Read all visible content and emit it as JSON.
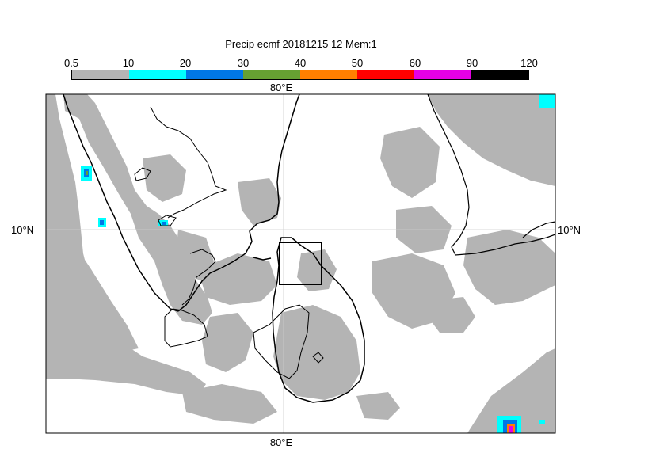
{
  "title": "Precip ecmf 20181215 12 Mem:1",
  "legend": {
    "labels": [
      "0.5",
      "10",
      "20",
      "30",
      "40",
      "50",
      "60",
      "90",
      "120"
    ],
    "colors": [
      "#b4b4b4",
      "#00ffff",
      "#0077e6",
      "#66a032",
      "#ff7f00",
      "#ff0000",
      "#e600e6",
      "#000000"
    ]
  },
  "axes": {
    "top_lon_label": "80°E",
    "bottom_lon_label": "80°E",
    "left_lat_label": "10°N",
    "right_lat_label": "10°N"
  },
  "colors": {
    "precip_light": "#b4b4b4",
    "background": "#ffffff",
    "coastline": "#000000",
    "gridline": "#cccccc"
  }
}
